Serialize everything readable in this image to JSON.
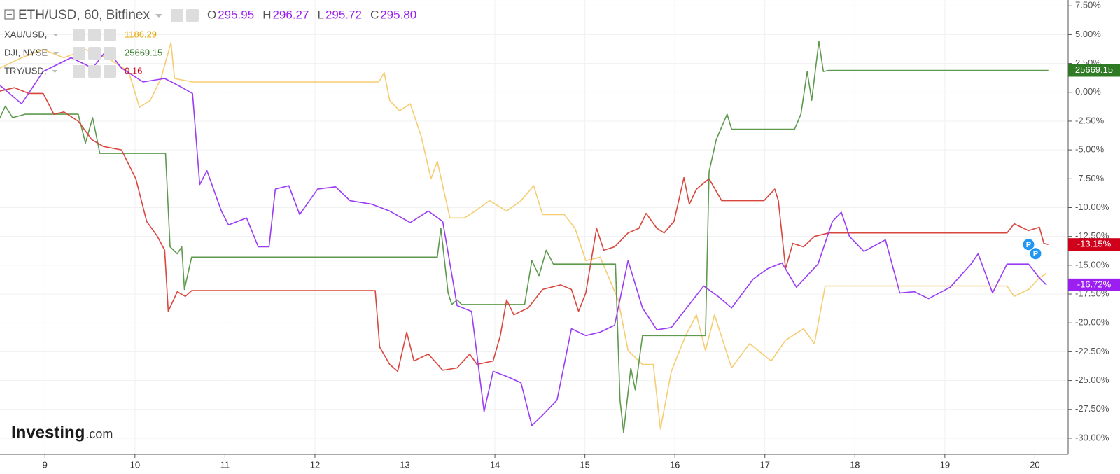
{
  "chart_data": {
    "type": "line",
    "xlim": [
      8.5,
      20.37
    ],
    "xticks": [
      9,
      10,
      11,
      12,
      13,
      14,
      15,
      16,
      17,
      18,
      19,
      20
    ],
    "ylim": [
      -31.4,
      8.0
    ],
    "yticks": [
      {
        "value": 7.5,
        "label": "7.50%"
      },
      {
        "value": 5,
        "label": "5.00%"
      },
      {
        "value": 2.5,
        "label": "2.50%"
      },
      {
        "value": 0,
        "label": "0.00%"
      },
      {
        "value": -2.5,
        "label": "-2.50%"
      },
      {
        "value": -5,
        "label": "-5.00%"
      },
      {
        "value": -7.5,
        "label": "-7.50%"
      },
      {
        "value": -10,
        "label": "-10.00%"
      },
      {
        "value": -12.5,
        "label": "-12.50%"
      },
      {
        "value": -15,
        "label": "-15.00%"
      },
      {
        "value": -17.5,
        "label": "-17.50%"
      },
      {
        "value": -20,
        "label": "-20.00%"
      },
      {
        "value": -22.5,
        "label": "-22.50%"
      },
      {
        "value": -25,
        "label": "-25.00%"
      },
      {
        "value": -27.5,
        "label": "-27.50%"
      },
      {
        "value": -30,
        "label": "-30.00%"
      }
    ],
    "grid": true,
    "series": [
      {
        "name": "ETH/USD, 60, Bitfinex",
        "color": "#9b3cf5",
        "text_color": "#9b1ff0",
        "ohlc": [
          {
            "label": "O",
            "value": "295.95"
          },
          {
            "label": "H",
            "value": "296.27"
          },
          {
            "label": "L",
            "value": "295.72"
          },
          {
            "label": "C",
            "value": "295.80"
          }
        ],
        "badge": "-16.72%",
        "x": [
          8.5,
          8.74,
          8.98,
          9.29,
          9.53,
          9.69,
          9.85,
          10.09,
          10.33,
          10.48,
          10.64,
          10.72,
          10.8,
          10.96,
          11.04,
          11.24,
          11.37,
          11.49,
          11.56,
          11.71,
          11.83,
          12.03,
          12.23,
          12.39,
          12.63,
          12.83,
          13.06,
          13.26,
          13.42,
          13.58,
          13.74,
          13.88,
          13.98,
          14.15,
          14.29,
          14.41,
          14.53,
          14.69,
          14.85,
          15.01,
          15.17,
          15.33,
          15.48,
          15.64,
          15.8,
          15.96,
          16.16,
          16.32,
          16.48,
          16.63,
          16.87,
          17.03,
          17.19,
          17.35,
          17.59,
          17.75,
          17.85,
          17.94,
          18.1,
          18.34,
          18.5,
          18.66,
          18.82,
          19.06,
          19.29,
          19.37,
          19.53,
          19.69,
          19.93,
          20.05,
          20.13
        ],
        "values": [
          0.6,
          -1.0,
          1.8,
          3.0,
          2.1,
          3.7,
          2.1,
          0.9,
          1.2,
          0.6,
          -0.1,
          -8.0,
          -6.8,
          -10.3,
          -11.5,
          -10.9,
          -13.4,
          -13.4,
          -8.4,
          -8.1,
          -10.6,
          -8.4,
          -8.2,
          -9.4,
          -9.7,
          -10.3,
          -11.3,
          -10.3,
          -11.2,
          -18.5,
          -19.0,
          -27.7,
          -24.2,
          -24.7,
          -25.2,
          -28.9,
          -28.0,
          -26.7,
          -20.5,
          -21.1,
          -20.8,
          -20.2,
          -14.6,
          -18.7,
          -20.6,
          -20.4,
          -18.4,
          -16.8,
          -17.7,
          -18.7,
          -16.2,
          -15.3,
          -14.8,
          -16.9,
          -14.9,
          -11.2,
          -10.4,
          -12.5,
          -13.8,
          -12.8,
          -17.4,
          -17.3,
          -17.9,
          -16.9,
          -14.9,
          -14.0,
          -17.4,
          -14.9,
          -14.9,
          -16.1,
          -16.7
        ]
      },
      {
        "name": "XAU/USD,",
        "color": "#f5cd72",
        "text_color": "#e6a700",
        "price": "1186.29",
        "x": [
          8.5,
          8.74,
          8.98,
          9.21,
          9.45,
          9.69,
          9.93,
          10.05,
          10.17,
          10.29,
          10.4,
          10.44,
          10.64,
          12.71,
          12.77,
          12.83,
          12.94,
          13.06,
          13.18,
          13.29,
          13.36,
          13.5,
          13.66,
          13.78,
          13.94,
          14.13,
          14.29,
          14.43,
          14.53,
          14.77,
          14.89,
          15.01,
          15.17,
          15.37,
          15.48,
          15.64,
          15.76,
          15.84,
          15.96,
          16.12,
          16.24,
          16.34,
          16.44,
          16.63,
          16.83,
          17.07,
          17.23,
          17.43,
          17.55,
          17.67,
          19.69,
          19.77,
          19.93,
          20.05,
          20.13
        ],
        "values": [
          2.1,
          3.0,
          3.7,
          3.0,
          3.7,
          3.0,
          1.8,
          -1.3,
          -0.7,
          1.2,
          4.3,
          1.2,
          0.9,
          0.9,
          1.7,
          -0.7,
          -1.6,
          -1.0,
          -3.8,
          -7.5,
          -6.0,
          -10.9,
          -10.9,
          -10.3,
          -9.4,
          -10.3,
          -9.4,
          -8.1,
          -10.6,
          -10.6,
          -11.8,
          -14.6,
          -14.3,
          -18.0,
          -22.4,
          -23.6,
          -23.6,
          -29.2,
          -24.2,
          -21.1,
          -19.3,
          -22.4,
          -19.3,
          -23.9,
          -21.8,
          -23.3,
          -21.5,
          -20.5,
          -21.8,
          -16.8,
          -16.8,
          -17.7,
          -17.1,
          -16.1,
          -15.7
        ]
      },
      {
        "name": "DJI, NYSE",
        "color": "#5e9a4e",
        "text_color": "#2f7a24",
        "price": "25669.15",
        "badge": "25669.15",
        "x": [
          8.5,
          8.56,
          8.64,
          8.78,
          9.37,
          9.45,
          9.53,
          9.61,
          10.34,
          10.39,
          10.47,
          10.52,
          10.55,
          10.63,
          13.36,
          13.4,
          13.48,
          13.52,
          13.58,
          13.63,
          14.33,
          14.41,
          14.49,
          14.57,
          14.65,
          15.34,
          15.39,
          15.43,
          15.51,
          15.56,
          15.64,
          16.34,
          16.38,
          16.46,
          16.58,
          16.63,
          17.33,
          17.4,
          17.47,
          17.52,
          17.6,
          17.65,
          17.71,
          20.15
        ],
        "values": [
          -2.2,
          -1.2,
          -2.2,
          -1.9,
          -1.9,
          -4.4,
          -2.2,
          -5.3,
          -5.3,
          -13.4,
          -14.0,
          -13.4,
          -17.1,
          -14.3,
          -14.3,
          -11.8,
          -17.4,
          -18.4,
          -18.0,
          -18.4,
          -18.4,
          -14.6,
          -15.9,
          -13.7,
          -14.9,
          -14.9,
          -26.7,
          -29.5,
          -23.9,
          -25.8,
          -21.1,
          -21.1,
          -6.9,
          -4.1,
          -1.9,
          -3.2,
          -3.2,
          -1.9,
          1.8,
          -0.7,
          4.4,
          1.8,
          1.9,
          1.9
        ]
      },
      {
        "name": "TRY/USD,",
        "color": "#d9463e",
        "text_color": "#d0021b",
        "price": "0.16",
        "badge": "-13.15%",
        "x": [
          8.5,
          8.66,
          8.82,
          8.98,
          9.1,
          9.21,
          9.37,
          9.52,
          9.65,
          9.85,
          10.01,
          10.13,
          10.25,
          10.33,
          10.37,
          10.47,
          10.56,
          10.63,
          12.67,
          12.72,
          12.83,
          12.92,
          13.02,
          13.1,
          13.26,
          13.42,
          13.58,
          13.72,
          13.8,
          13.98,
          14.06,
          14.13,
          14.21,
          14.37,
          14.53,
          14.73,
          14.85,
          14.93,
          15.01,
          15.13,
          15.21,
          15.33,
          15.48,
          15.6,
          15.68,
          15.8,
          15.88,
          15.99,
          16.1,
          16.16,
          16.24,
          16.38,
          16.52,
          16.75,
          16.99,
          17.11,
          17.15,
          17.23,
          17.31,
          17.43,
          17.55,
          17.71,
          19.69,
          19.77,
          19.93,
          20.05,
          20.1,
          20.15
        ],
        "values": [
          0.1,
          0.4,
          -0.1,
          -0.1,
          -1.9,
          -1.7,
          -2.5,
          -4.1,
          -4.7,
          -5.0,
          -7.5,
          -11.2,
          -12.5,
          -13.7,
          -19.0,
          -17.3,
          -17.7,
          -17.2,
          -17.2,
          -22.1,
          -23.6,
          -24.2,
          -20.8,
          -23.3,
          -22.7,
          -24.1,
          -23.9,
          -22.7,
          -23.6,
          -23.3,
          -21.1,
          -18.0,
          -19.3,
          -18.7,
          -17.1,
          -16.7,
          -17.1,
          -19.0,
          -17.4,
          -11.8,
          -13.7,
          -13.4,
          -12.2,
          -11.8,
          -10.5,
          -11.8,
          -12.2,
          -11.2,
          -7.4,
          -9.7,
          -8.4,
          -7.5,
          -9.4,
          -9.4,
          -9.4,
          -8.4,
          -9.4,
          -15.3,
          -13.1,
          -13.4,
          -12.5,
          -12.2,
          -12.2,
          -11.4,
          -12.0,
          -11.7,
          -13.1,
          -13.2
        ]
      }
    ],
    "event_markers": [
      "P",
      "P"
    ],
    "watermark": {
      "brand": "Investing",
      "suffix": ".com"
    }
  }
}
